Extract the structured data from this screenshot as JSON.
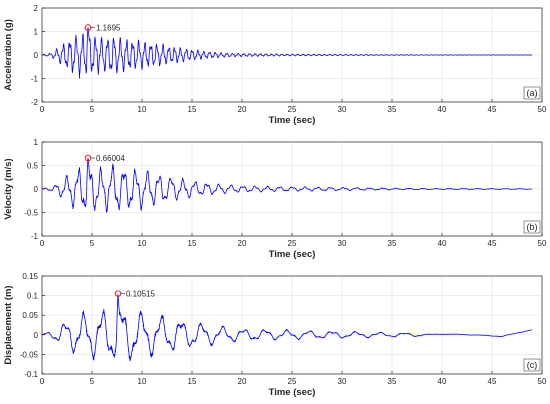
{
  "chart_data": [
    {
      "type": "line",
      "panel_label": "(a)",
      "xlabel": "Time (sec)",
      "ylabel": "Acceleration (g)",
      "xlim": [
        0,
        50
      ],
      "ylim": [
        -2,
        2
      ],
      "xticks": [
        "0",
        "5",
        "10",
        "15",
        "20",
        "25",
        "30",
        "35",
        "40",
        "45",
        "50"
      ],
      "yticks": [
        "-2",
        "-1",
        "0",
        "1",
        "2"
      ],
      "grid": true,
      "series_color": "#0000ff",
      "duration": 49,
      "peak": {
        "x": 4.6,
        "y": 1.1695,
        "label": "1.1695"
      },
      "signal": {
        "envelope": [
          [
            0,
            0.02
          ],
          [
            1,
            0.1
          ],
          [
            2,
            0.45
          ],
          [
            3,
            0.8
          ],
          [
            4,
            0.95
          ],
          [
            5,
            0.9
          ],
          [
            6,
            0.75
          ],
          [
            7,
            0.85
          ],
          [
            8,
            0.7
          ],
          [
            10,
            0.6
          ],
          [
            12,
            0.45
          ],
          [
            14,
            0.3
          ],
          [
            16,
            0.18
          ],
          [
            18,
            0.1
          ],
          [
            20,
            0.07
          ],
          [
            25,
            0.04
          ],
          [
            30,
            0.025
          ],
          [
            35,
            0.015
          ],
          [
            40,
            0.01
          ],
          [
            49,
            0.006
          ]
        ],
        "freq_start": 1.5,
        "freq_end": 2.2
      }
    },
    {
      "type": "line",
      "panel_label": "(b)",
      "xlabel": "Time (sec)",
      "ylabel": "Velocity (m/s)",
      "xlim": [
        0,
        50
      ],
      "ylim": [
        -1,
        1
      ],
      "xticks": [
        "0",
        "5",
        "10",
        "15",
        "20",
        "25",
        "30",
        "35",
        "40",
        "45",
        "50"
      ],
      "yticks": [
        "-1",
        "-0.5",
        "0",
        "0.5",
        "1"
      ],
      "grid": true,
      "series_color": "#0000ff",
      "duration": 49,
      "peak": {
        "x": 4.6,
        "y": 0.66004,
        "label": "0.66004"
      },
      "signal": {
        "envelope": [
          [
            0,
            0.01
          ],
          [
            1,
            0.05
          ],
          [
            2,
            0.2
          ],
          [
            3,
            0.38
          ],
          [
            4,
            0.5
          ],
          [
            5,
            0.5
          ],
          [
            6,
            0.45
          ],
          [
            7,
            0.52
          ],
          [
            8,
            0.48
          ],
          [
            10,
            0.42
          ],
          [
            12,
            0.32
          ],
          [
            14,
            0.22
          ],
          [
            16,
            0.15
          ],
          [
            18,
            0.1
          ],
          [
            20,
            0.07
          ],
          [
            25,
            0.05
          ],
          [
            30,
            0.035
          ],
          [
            35,
            0.02
          ],
          [
            40,
            0.012
          ],
          [
            49,
            0.008
          ]
        ],
        "freq_start": 0.9,
        "freq_end": 0.7
      }
    },
    {
      "type": "line",
      "panel_label": "(c)",
      "xlabel": "Time (sec)",
      "ylabel": "Displacement (m)",
      "xlim": [
        0,
        50
      ],
      "ylim": [
        -0.1,
        0.15
      ],
      "xticks": [
        "0",
        "5",
        "10",
        "15",
        "20",
        "25",
        "30",
        "35",
        "40",
        "45",
        "50"
      ],
      "yticks": [
        "-0.1",
        "-0.05",
        "0",
        "0.05",
        "0.1",
        "0.15"
      ],
      "grid": true,
      "series_color": "#0000ff",
      "duration": 49,
      "peak": {
        "x": 7.6,
        "y": 0.10515,
        "label": "0.10515"
      },
      "signal": {
        "envelope": [
          [
            0,
            0.003
          ],
          [
            1,
            0.01
          ],
          [
            2,
            0.03
          ],
          [
            3,
            0.045
          ],
          [
            4,
            0.055
          ],
          [
            5,
            0.06
          ],
          [
            6,
            0.065
          ],
          [
            7,
            0.07
          ],
          [
            8,
            0.075
          ],
          [
            10,
            0.06
          ],
          [
            12,
            0.05
          ],
          [
            14,
            0.04
          ],
          [
            16,
            0.03
          ],
          [
            18,
            0.022
          ],
          [
            20,
            0.016
          ],
          [
            25,
            0.012
          ],
          [
            30,
            0.009
          ],
          [
            35,
            0.006
          ],
          [
            40,
            0.004
          ],
          [
            49,
            0.003
          ]
        ],
        "freq_start": 0.55,
        "freq_end": 0.35
      },
      "late_drift": [
        [
          38,
          0.0
        ],
        [
          40,
          0.002
        ],
        [
          43,
          0.0
        ],
        [
          46,
          -0.004
        ],
        [
          49,
          0.013
        ]
      ]
    }
  ]
}
